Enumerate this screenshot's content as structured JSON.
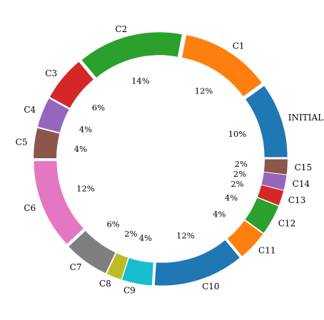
{
  "chart_data": {
    "type": "pie",
    "variant": "donut",
    "title": "",
    "start_angle_deg": 0,
    "direction": "counterclockwise",
    "exploded": true,
    "labels": [
      "INITIAL",
      "C1",
      "C2",
      "C3",
      "C4",
      "C5",
      "C6",
      "C7",
      "C8",
      "C9",
      "C10",
      "C11",
      "C12",
      "C13",
      "C14",
      "C15"
    ],
    "values": [
      10,
      12,
      14,
      6,
      4,
      4,
      12,
      6,
      2,
      4,
      12,
      4,
      4,
      2,
      2,
      2
    ],
    "percent_labels": [
      "10%",
      "12%",
      "14%",
      "6%",
      "4%",
      "4%",
      "12%",
      "6%",
      "2%",
      "4%",
      "12%",
      "4%",
      "4%",
      "2%",
      "2%",
      "2%"
    ],
    "colors": [
      "#1f77b4",
      "#ff7f0e",
      "#2ca02c",
      "#d62728",
      "#9467bd",
      "#8c564b",
      "#e377c2",
      "#7f7f7f",
      "#bcbd22",
      "#17becf",
      "#1f77b4",
      "#ff7f0e",
      "#2ca02c",
      "#d62728",
      "#9467bd",
      "#8c564b"
    ]
  }
}
